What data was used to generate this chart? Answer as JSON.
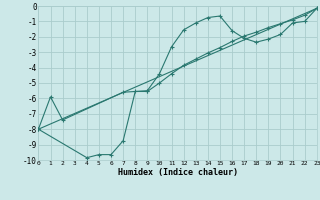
{
  "xlabel": "Humidex (Indice chaleur)",
  "bg_color": "#cce8e8",
  "grid_color": "#aacccc",
  "line_color": "#2a7870",
  "xlim": [
    0,
    23
  ],
  "ylim": [
    -10,
    0
  ],
  "xtick_vals": [
    0,
    1,
    2,
    3,
    4,
    5,
    6,
    7,
    8,
    9,
    10,
    11,
    12,
    13,
    14,
    15,
    16,
    17,
    18,
    19,
    20,
    21,
    22,
    23
  ],
  "ytick_vals": [
    0,
    -1,
    -2,
    -3,
    -4,
    -5,
    -6,
    -7,
    -8,
    -9,
    -10
  ],
  "curve1_x": [
    0,
    1,
    2,
    7,
    9,
    10,
    11,
    12,
    13,
    14,
    15,
    16,
    17,
    18,
    19,
    20,
    21,
    22,
    23
  ],
  "curve1_y": [
    -8.0,
    -5.9,
    -7.4,
    -5.6,
    -5.5,
    -4.4,
    -2.65,
    -1.55,
    -1.1,
    -0.75,
    -0.65,
    -1.6,
    -2.1,
    -2.35,
    -2.15,
    -1.85,
    -1.1,
    -1.0,
    -0.15
  ],
  "curve2_x": [
    0,
    4,
    5,
    6,
    7,
    8,
    9,
    10,
    11,
    12,
    13,
    14,
    15,
    16,
    17,
    18,
    19,
    20,
    21,
    22,
    23
  ],
  "curve2_y": [
    -8.0,
    -9.85,
    -9.65,
    -9.65,
    -8.75,
    -5.55,
    -5.55,
    -5.0,
    -4.4,
    -3.85,
    -3.45,
    -3.05,
    -2.7,
    -2.3,
    -1.95,
    -1.7,
    -1.4,
    -1.15,
    -0.9,
    -0.6,
    -0.15
  ],
  "curve3_x": [
    0,
    23
  ],
  "curve3_y": [
    -8.0,
    -0.15
  ],
  "ylabel_vals": [
    "0",
    "-1",
    "-2",
    "-3",
    "-4",
    "-5",
    "-6",
    "-7",
    "-8",
    "-9",
    "-10"
  ]
}
